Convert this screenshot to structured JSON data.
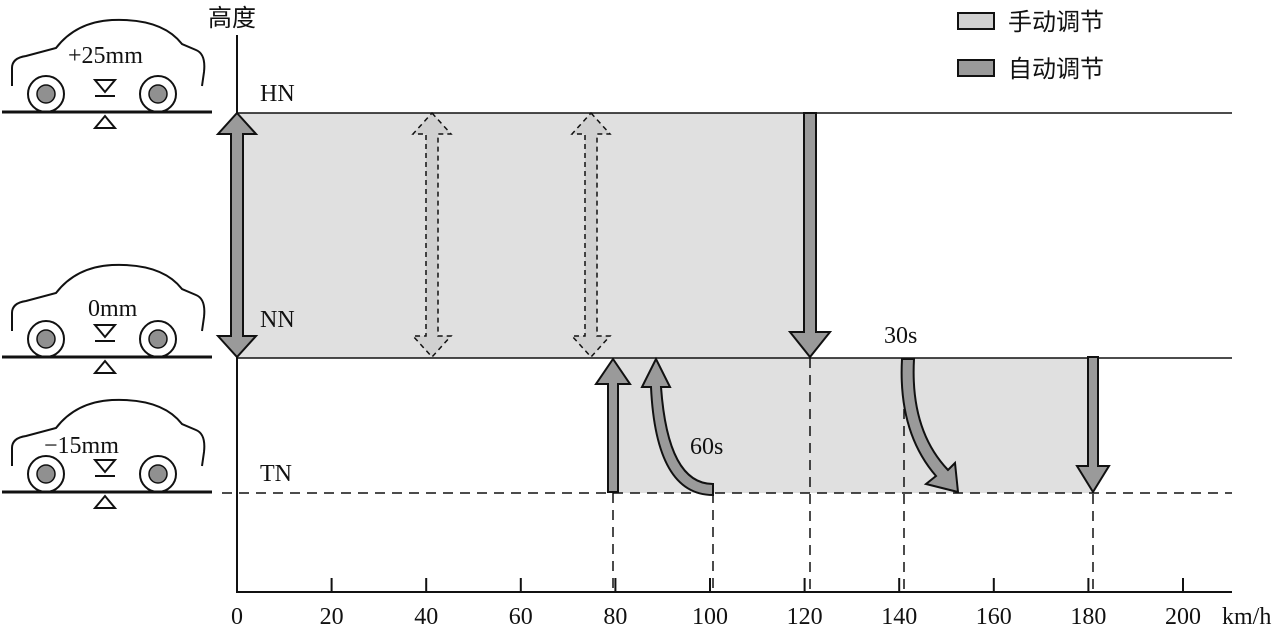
{
  "y_axis_title": "高度",
  "x_axis_unit": "km/h",
  "x_ticks": [
    "0",
    "20",
    "40",
    "60",
    "80",
    "100",
    "120",
    "140",
    "160",
    "180",
    "200"
  ],
  "levels": [
    {
      "id": "HN",
      "label": "HN",
      "car_offset": "+25mm"
    },
    {
      "id": "NN",
      "label": "NN",
      "car_offset": "0mm"
    },
    {
      "id": "TN",
      "label": "TN",
      "car_offset": "−15mm"
    }
  ],
  "legend": [
    {
      "label": "手动调节",
      "color": "#d0d0d0"
    },
    {
      "label": "自动调节",
      "color": "#9a9a9a"
    }
  ],
  "annotations": {
    "delay_60": "60s",
    "delay_30": "30s"
  },
  "colors": {
    "manual_fill": "#e0e0e0",
    "manual_arrow": "#d0d0d0",
    "auto_arrow": "#9a9a9a",
    "line": "#111111"
  }
}
